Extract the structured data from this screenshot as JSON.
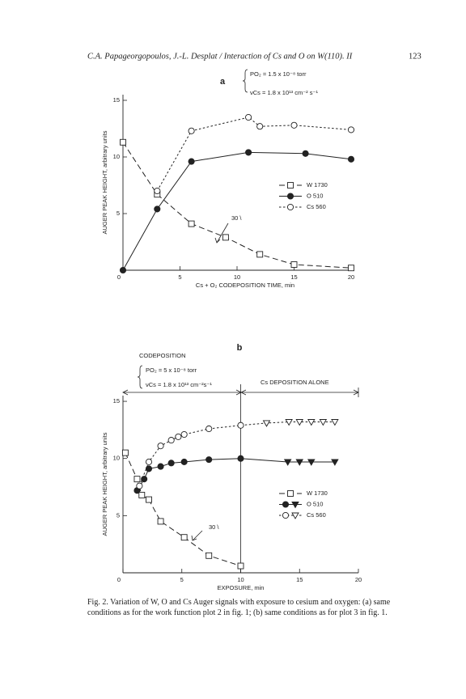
{
  "header": {
    "running_title": "C.A. Papageorgopoulos, J.-L. Desplat / Interaction of Cs and O on W(110). II",
    "page_number": "123"
  },
  "chart_data": [
    {
      "type": "line",
      "annotations": [
        "a",
        "PO₂ = 1.5 x 10⁻⁸ torr",
        "νCs = 1.8 x 10¹³ cm⁻² s⁻¹",
        "30 \\"
      ],
      "x_label": "Cs + O₂ CODEPOSITION TIME, min",
      "y_label": "AUGER PEAK HEIGHT, arbitrary units",
      "xlim": [
        0,
        20
      ],
      "ylim": [
        0,
        15.5
      ],
      "xticks": [
        0,
        5,
        10,
        15,
        20
      ],
      "yticks": [
        5,
        10,
        15
      ],
      "series": [
        {
          "name": "W 1730",
          "color": "#222222",
          "line_style": "dashed",
          "marker": "square",
          "filled": false,
          "x": [
            0,
            3,
            6,
            9,
            12,
            15,
            20
          ],
          "values": [
            11.3,
            6.7,
            4.1,
            2.9,
            1.4,
            0.5,
            0.2
          ]
        },
        {
          "name": "O 510",
          "color": "#222222",
          "line_style": "solid",
          "marker": "circle",
          "filled": true,
          "x": [
            0,
            3,
            6,
            11,
            16,
            20
          ],
          "values": [
            0,
            5.4,
            9.6,
            10.4,
            10.3,
            9.8
          ]
        },
        {
          "name": "Cs 560",
          "color": "#222222",
          "line_style": "dotted",
          "marker": "circle",
          "filled": false,
          "x": [
            3,
            6,
            11,
            12,
            15,
            20
          ],
          "values": [
            7,
            12.3,
            13.5,
            12.7,
            12.8,
            12.4
          ]
        }
      ]
    },
    {
      "type": "line",
      "annotations": [
        "b",
        "CODEPOSITION",
        "PO₂ = 5 x 10⁻⁸ torr",
        "νCs = 1.8 x 10¹³ cm⁻²s⁻¹",
        "Cs DEPOSITION ALONE",
        "30 \\"
      ],
      "x_label": "EXPOSURE, min",
      "y_label": "AUGER PEAK HEIGHT, arbitrary units",
      "xlim": [
        0,
        20
      ],
      "ylim": [
        0,
        15.5
      ],
      "xticks": [
        0,
        5,
        10,
        15,
        20
      ],
      "yticks": [
        5,
        10,
        15
      ],
      "vline": 10,
      "series": [
        {
          "name": "W 1730",
          "color": "#222222",
          "line_style": "dashed",
          "filled": false,
          "markers": [
            "square",
            "square",
            "square",
            "square",
            "square",
            "square",
            "square",
            "square"
          ],
          "x": [
            0.2,
            1.2,
            1.6,
            2.2,
            3.2,
            5.2,
            7.3,
            10
          ],
          "values": [
            10.5,
            8.2,
            6.8,
            6.4,
            4.5,
            3.1,
            1.5,
            0.6
          ]
        },
        {
          "name": "O 510",
          "color": "#222222",
          "line_style": "solid",
          "filled": true,
          "markers": [
            "circle",
            "circle",
            "circle",
            "circle",
            "circle",
            "circle",
            "circle",
            "circle",
            "triangle-down",
            "triangle-down",
            "triangle-down",
            "triangle-down"
          ],
          "x": [
            1.2,
            1.8,
            2.2,
            3.2,
            4.1,
            5.2,
            7.3,
            10,
            14,
            15,
            16,
            18
          ],
          "values": [
            7.2,
            8.2,
            9.1,
            9.3,
            9.6,
            9.7,
            9.9,
            10,
            9.7,
            9.7,
            9.7,
            9.7
          ]
        },
        {
          "name": "Cs 560",
          "color": "#222222",
          "line_style": "dotted",
          "filled": false,
          "markers": [
            "circle",
            "circle",
            "circle",
            "circle",
            "circle",
            "circle",
            "circle",
            "circle",
            "triangle-down",
            "triangle-down",
            "triangle-down",
            "triangle-down",
            "triangle-down",
            "triangle-down"
          ],
          "x": [
            1.4,
            2.2,
            3.2,
            4.1,
            4.7,
            5.2,
            7.3,
            10,
            12.2,
            14.1,
            15,
            16,
            17,
            18
          ],
          "values": [
            7.6,
            9.7,
            11.1,
            11.6,
            11.9,
            12.1,
            12.6,
            12.9,
            13.1,
            13.2,
            13.2,
            13.2,
            13.2,
            13.2
          ]
        }
      ]
    }
  ],
  "caption": "Fig. 2. Variation of W, O and Cs Auger signals with exposure to cesium and oxygen: (a) same conditions as for the work function plot 2 in fig. 1; (b) same conditions as for plot 3 in fig. 1."
}
